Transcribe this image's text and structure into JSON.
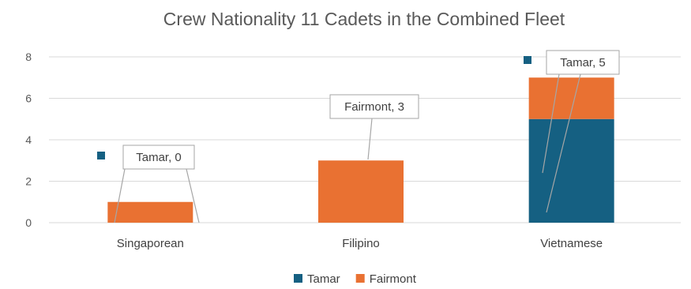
{
  "chart_data": {
    "type": "bar",
    "stacked": true,
    "title": "Crew Nationality 11 Cadets in the Combined Fleet",
    "categories": [
      "Singaporean",
      "Filipino",
      "Vietnamese"
    ],
    "series": [
      {
        "name": "Tamar",
        "color": "#156082",
        "values": [
          0,
          0,
          5
        ]
      },
      {
        "name": "Fairmont",
        "color": "#E97132",
        "values": [
          1,
          3,
          2
        ]
      }
    ],
    "ylim": [
      0,
      8
    ],
    "yticks": [
      "0",
      "2",
      "4",
      "6",
      "8"
    ],
    "grid": true,
    "legend": "bottom",
    "callouts": [
      {
        "text": "Tamar, 0",
        "category": "Singaporean",
        "series": "Tamar"
      },
      {
        "text": "Fairmont, 3",
        "category": "Filipino",
        "series": "Fairmont"
      },
      {
        "text": "Tamar, 5",
        "category": "Vietnamese",
        "series": "Tamar"
      }
    ]
  }
}
